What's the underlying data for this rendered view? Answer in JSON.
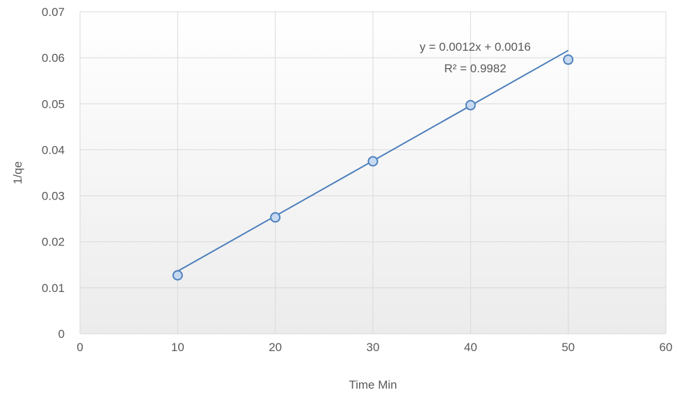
{
  "chart_data": {
    "type": "scatter",
    "title": "",
    "xlabel": "Time Min",
    "ylabel": "1/qe",
    "xlim": [
      0,
      60
    ],
    "ylim": [
      0,
      0.07
    ],
    "x_ticks": [
      "0",
      "10",
      "20",
      "30",
      "40",
      "50",
      "60"
    ],
    "y_ticks": [
      "0",
      "0.01",
      "0.02",
      "0.03",
      "0.04",
      "0.05",
      "0.06",
      "0.07"
    ],
    "grid": true,
    "legend": "none",
    "series": [
      {
        "x": [
          10,
          20,
          30,
          40,
          50
        ],
        "y": [
          0.0127,
          0.0253,
          0.0375,
          0.0497,
          0.0596
        ],
        "marker_color": "#4f81bd",
        "marker_fill": "#c6d9f1"
      }
    ],
    "trendline": {
      "equation": "y = 0.0012x + 0.0016",
      "r_squared": "R² = 0.9982",
      "slope": 0.0012,
      "intercept": 0.0016,
      "x_range": [
        10,
        50
      ],
      "color": "#4a7ebb"
    },
    "colors": {
      "plot_bg_top": "#ffffff",
      "plot_bg_bottom": "#ececec",
      "grid": "#d9d9d9",
      "text": "#595959"
    }
  }
}
